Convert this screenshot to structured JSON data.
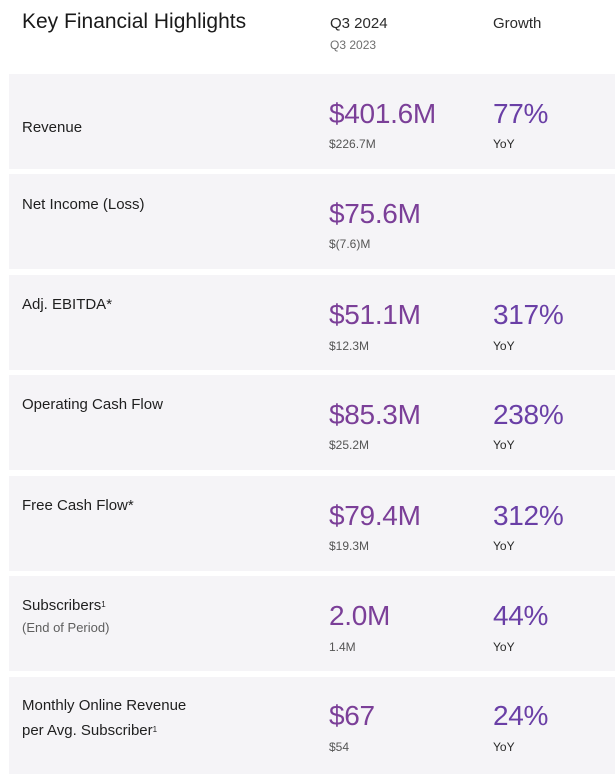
{
  "header": {
    "title": "Key Financial Highlights",
    "period_current": "Q3 2024",
    "period_prior": "Q3 2023",
    "growth_label": "Growth"
  },
  "rows": [
    {
      "label": "Revenue",
      "value": "$401.6M",
      "prior": "$226.7M",
      "growth": "77%",
      "growth_unit": "YoY"
    },
    {
      "label": "Net Income (Loss)",
      "value": "$75.6M",
      "prior": "$(7.6)M",
      "growth": "",
      "growth_unit": ""
    },
    {
      "label": "Adj. EBITDA*",
      "value": "$51.1M",
      "prior": "$12.3M",
      "growth": "317%",
      "growth_unit": "YoY"
    },
    {
      "label": "Operating Cash Flow",
      "value": "$85.3M",
      "prior": "$25.2M",
      "growth": "238%",
      "growth_unit": "YoY"
    },
    {
      "label": "Free Cash Flow*",
      "value": "$79.4M",
      "prior": "$19.3M",
      "growth": "312%",
      "growth_unit": "YoY"
    },
    {
      "label": "Subscribers",
      "footnote": "1",
      "sublabel": "(End of Period)",
      "value": "2.0M",
      "prior": "1.4M",
      "growth": "44%",
      "growth_unit": "YoY"
    },
    {
      "label_line1": "Monthly Online Revenue",
      "label_line2": "per Avg. Subscriber",
      "footnote": "1",
      "value": "$67",
      "prior": "$54",
      "growth": "24%",
      "growth_unit": "YoY"
    }
  ]
}
